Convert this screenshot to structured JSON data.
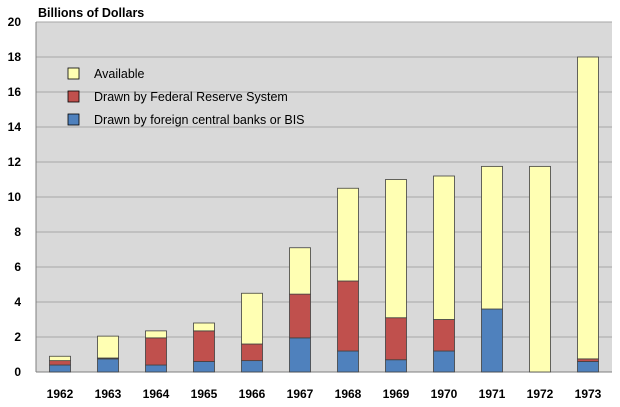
{
  "chart_data": {
    "type": "bar",
    "stacked": true,
    "unit_label": "Billions of Dollars",
    "categories": [
      "1962",
      "1963",
      "1964",
      "1965",
      "1966",
      "1967",
      "1968",
      "1969",
      "1970",
      "1971",
      "1972",
      "1973"
    ],
    "series": [
      {
        "name": "Drawn by foreign central banks or BIS",
        "color": "#4f81bd",
        "values": [
          0.4,
          0.75,
          0.4,
          0.6,
          0.65,
          1.95,
          1.2,
          0.7,
          1.2,
          3.6,
          0.0,
          0.6
        ]
      },
      {
        "name": "Drawn by Federal Reserve System",
        "color": "#c0504d",
        "values": [
          0.25,
          0.05,
          1.55,
          1.75,
          0.95,
          2.5,
          4.0,
          2.4,
          1.8,
          0.0,
          0.0,
          0.15
        ]
      },
      {
        "name": "Available",
        "color": "#ffffb3",
        "values": [
          0.25,
          1.25,
          0.4,
          0.45,
          2.9,
          2.65,
          5.3,
          7.9,
          8.2,
          8.15,
          11.75,
          17.25
        ]
      }
    ],
    "legend": {
      "placement": "top-left",
      "order": [
        "Available",
        "Drawn by Federal Reserve System",
        "Drawn by foreign central banks or BIS"
      ]
    },
    "ylim": [
      0,
      20
    ],
    "yticks": [
      "0",
      "2",
      "4",
      "6",
      "8",
      "10",
      "12",
      "14",
      "16",
      "18",
      "20"
    ],
    "grid": true,
    "plot_background": "#d9d9d9"
  }
}
